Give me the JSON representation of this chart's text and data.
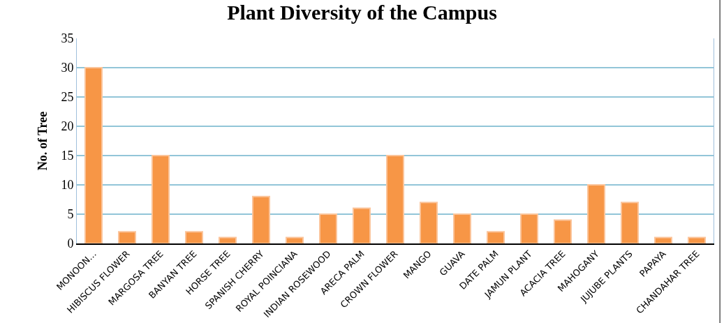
{
  "chart_data": {
    "type": "bar",
    "title": "Plant Diversity of the Campus",
    "ylabel": "No. of Tree",
    "categories": [
      "MONOON...",
      "HIBISCUS FLOWER",
      "MARGOSA TREE",
      "BANYAN TREE",
      "HORSE TREE",
      "SPANISH CHERRY",
      "ROYAL POINCIANA",
      "INDIAN ROSEWOOD",
      "ARECA PALM",
      "CROWN FLOWER",
      "MANGO",
      "GUAVA",
      "DATE PALM",
      "JAMUN PLANT",
      "ACACIA TREE",
      "MAHOGANY",
      "JUJUBE PLANTS",
      "PAPAYA",
      "CHANDAHAR TREE"
    ],
    "values": [
      30,
      2,
      15,
      2,
      1,
      8,
      1,
      5,
      6,
      15,
      7,
      5,
      2,
      5,
      4,
      10,
      7,
      1,
      1
    ],
    "color": "#f79646",
    "ylim": [
      0,
      35
    ],
    "yticks": [
      0,
      5,
      10,
      15,
      20,
      25,
      30,
      35
    ],
    "grid": "y"
  }
}
